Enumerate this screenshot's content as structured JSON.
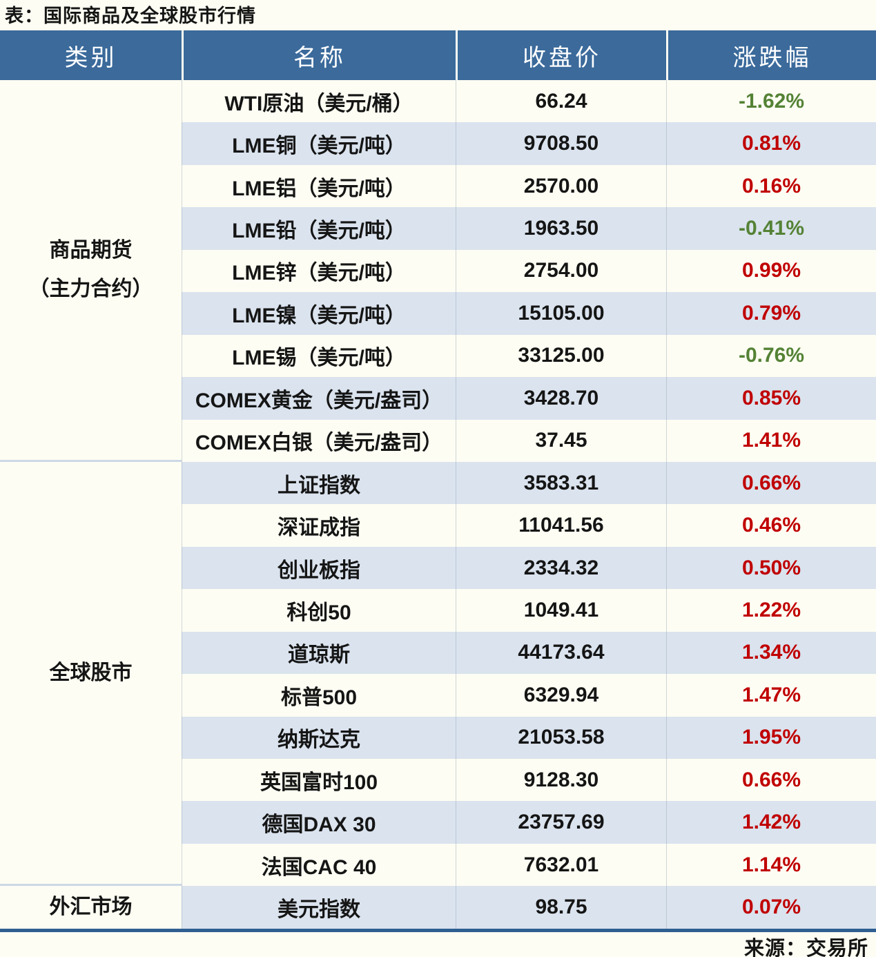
{
  "title": "表：国际商品及全球股市行情",
  "source": "来源：交易所",
  "colors": {
    "header_bg": "#3b6a9b",
    "stripe": "#dae3ee",
    "page_bg": "#fdfdf3",
    "up": "#c00000",
    "down": "#548235",
    "bottom_border": "#2f5e91",
    "group_separator": "#ccd8e6"
  },
  "chart_data": {
    "type": "table",
    "columns": [
      "类别",
      "名称",
      "收盘价",
      "涨跌幅"
    ],
    "groups": [
      {
        "category": "商品期货\n（主力合约）",
        "rows": [
          {
            "name": "WTI原油（美元/桶）",
            "close": "66.24",
            "change": "-1.62%",
            "direction": "down"
          },
          {
            "name": "LME铜（美元/吨）",
            "close": "9708.50",
            "change": "0.81%",
            "direction": "up"
          },
          {
            "name": "LME铝（美元/吨）",
            "close": "2570.00",
            "change": "0.16%",
            "direction": "up"
          },
          {
            "name": "LME铅（美元/吨）",
            "close": "1963.50",
            "change": "-0.41%",
            "direction": "down"
          },
          {
            "name": "LME锌（美元/吨）",
            "close": "2754.00",
            "change": "0.99%",
            "direction": "up"
          },
          {
            "name": "LME镍（美元/吨）",
            "close": "15105.00",
            "change": "0.79%",
            "direction": "up"
          },
          {
            "name": "LME锡（美元/吨）",
            "close": "33125.00",
            "change": "-0.76%",
            "direction": "down"
          },
          {
            "name": "COMEX黄金（美元/盎司）",
            "close": "3428.70",
            "change": "0.85%",
            "direction": "up"
          },
          {
            "name": "COMEX白银（美元/盎司）",
            "close": "37.45",
            "change": "1.41%",
            "direction": "up"
          }
        ]
      },
      {
        "category": "全球股市",
        "rows": [
          {
            "name": "上证指数",
            "close": "3583.31",
            "change": "0.66%",
            "direction": "up"
          },
          {
            "name": "深证成指",
            "close": "11041.56",
            "change": "0.46%",
            "direction": "up"
          },
          {
            "name": "创业板指",
            "close": "2334.32",
            "change": "0.50%",
            "direction": "up"
          },
          {
            "name": "科创50",
            "close": "1049.41",
            "change": "1.22%",
            "direction": "up"
          },
          {
            "name": "道琼斯",
            "close": "44173.64",
            "change": "1.34%",
            "direction": "up"
          },
          {
            "name": "标普500",
            "close": "6329.94",
            "change": "1.47%",
            "direction": "up"
          },
          {
            "name": "纳斯达克",
            "close": "21053.58",
            "change": "1.95%",
            "direction": "up"
          },
          {
            "name": "英国富时100",
            "close": "9128.30",
            "change": "0.66%",
            "direction": "up"
          },
          {
            "name": "德国DAX 30",
            "close": "23757.69",
            "change": "1.42%",
            "direction": "up"
          },
          {
            "name": "法国CAC 40",
            "close": "7632.01",
            "change": "1.14%",
            "direction": "up"
          }
        ]
      },
      {
        "category": "外汇市场",
        "rows": [
          {
            "name": "美元指数",
            "close": "98.75",
            "change": "0.07%",
            "direction": "up"
          }
        ]
      }
    ]
  }
}
